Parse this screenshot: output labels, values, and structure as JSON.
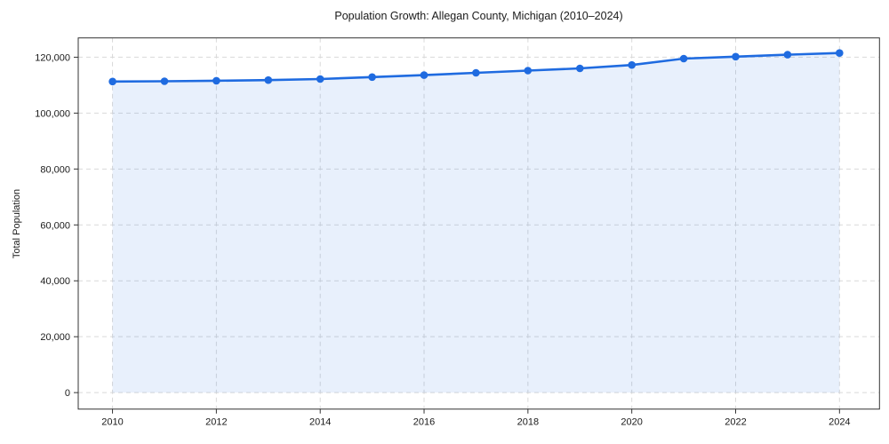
{
  "figure": {
    "background_color": "#ffffff"
  },
  "chart_data": {
    "type": "line",
    "title": "Population Growth: Allegan County, Michigan (2010–2024)",
    "xlabel": "",
    "ylabel": "Total Population",
    "x": [
      2010,
      2011,
      2012,
      2013,
      2014,
      2015,
      2016,
      2017,
      2018,
      2019,
      2020,
      2021,
      2022,
      2023,
      2024
    ],
    "values": [
      111300,
      111400,
      111600,
      111800,
      112200,
      112900,
      113600,
      114400,
      115200,
      116000,
      117200,
      119500,
      120200,
      120900,
      121500
    ],
    "series_name": "Total Population",
    "x_ticks": [
      2010,
      2012,
      2014,
      2016,
      2018,
      2020,
      2022,
      2024
    ],
    "y_ticks": [
      0,
      20000,
      40000,
      60000,
      80000,
      100000,
      120000
    ],
    "y_tick_labels": [
      "0",
      "20,000",
      "40,000",
      "60,000",
      "80,000",
      "100,000",
      "120,000"
    ],
    "x_range": [
      2009.34,
      2024.77
    ],
    "y_range": [
      -5900,
      126900
    ],
    "grid": true,
    "grid_style": "dashed",
    "legend": "none",
    "area_fill_to_zero": true,
    "line_color": "#1f6be0",
    "fill_color": "rgba(31,107,224,0.10)",
    "grid_color": "#d9d9d9",
    "spine_color": "#333333",
    "text_color": "#1a1a1a",
    "marker_radius": 4.3,
    "line_width": 2.6,
    "tick_font_size": 11
  }
}
